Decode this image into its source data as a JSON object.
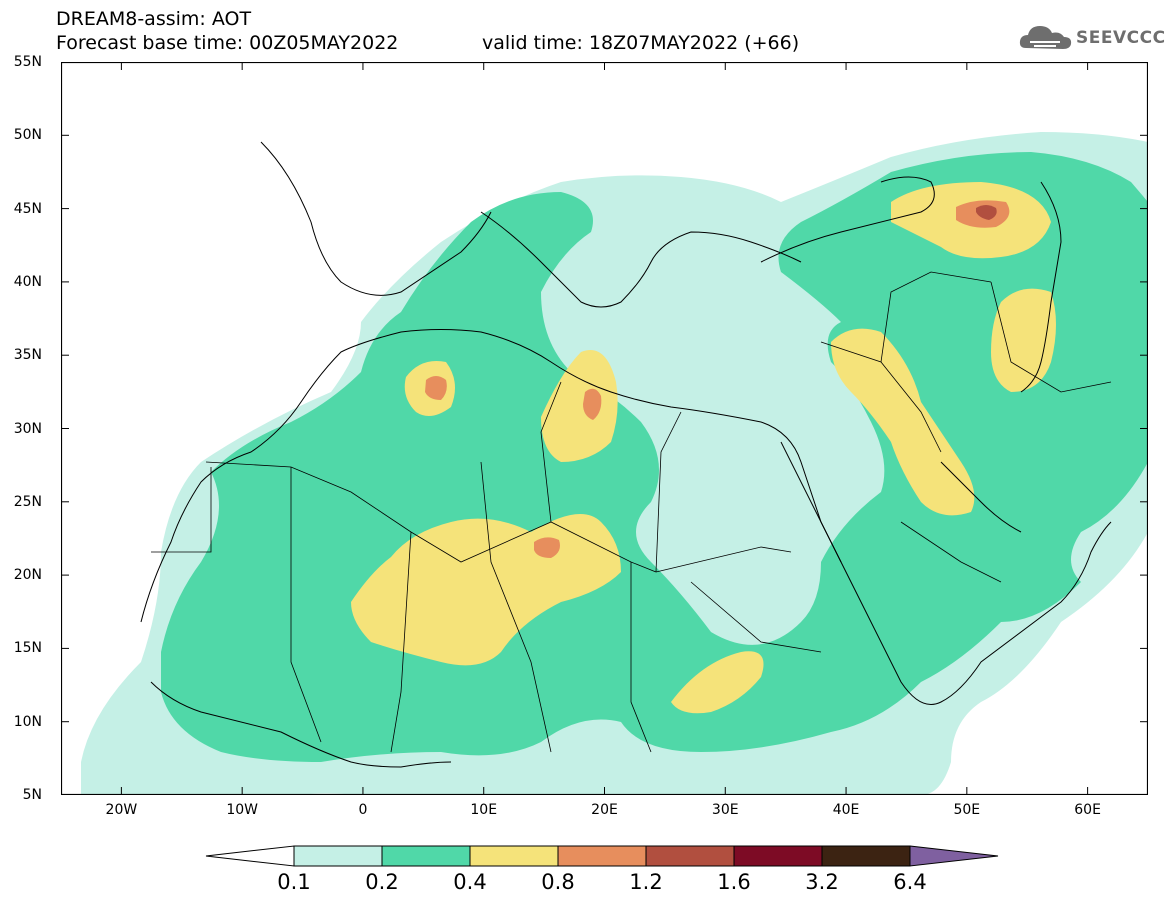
{
  "title": {
    "line1": "DREAM8-assim: AOT",
    "line2": "Forecast base time: 00Z05MAY2022",
    "valid": "valid time: 18Z07MAY2022 (+66)"
  },
  "brand": {
    "name": "SEEVCCC",
    "icon": "cloud-logo-icon"
  },
  "map": {
    "projection": "lat-lon",
    "lon_range": [
      -25,
      65
    ],
    "lat_range": [
      5,
      55
    ],
    "lat_ticks": [
      {
        "value": 55,
        "label": "55N"
      },
      {
        "value": 50,
        "label": "50N"
      },
      {
        "value": 45,
        "label": "45N"
      },
      {
        "value": 40,
        "label": "40N"
      },
      {
        "value": 35,
        "label": "35N"
      },
      {
        "value": 30,
        "label": "30N"
      },
      {
        "value": 25,
        "label": "25N"
      },
      {
        "value": 20,
        "label": "20N"
      },
      {
        "value": 15,
        "label": "15N"
      },
      {
        "value": 10,
        "label": "10N"
      },
      {
        "value": 5,
        "label": "5N"
      }
    ],
    "lon_ticks": [
      {
        "value": -20,
        "label": "20W"
      },
      {
        "value": -10,
        "label": "10W"
      },
      {
        "value": 0,
        "label": "0"
      },
      {
        "value": 10,
        "label": "10E"
      },
      {
        "value": 20,
        "label": "20E"
      },
      {
        "value": 30,
        "label": "30E"
      },
      {
        "value": 40,
        "label": "40E"
      },
      {
        "value": 50,
        "label": "50E"
      },
      {
        "value": 60,
        "label": "60E"
      }
    ]
  },
  "colorbar": {
    "levels": [
      "0.1",
      "0.2",
      "0.4",
      "0.8",
      "1.2",
      "1.6",
      "3.2",
      "6.4"
    ],
    "colors": [
      "#ffffff",
      "#c5f0e6",
      "#50d8a8",
      "#f5e37a",
      "#e78e5d",
      "#b14f3f",
      "#7d0b25",
      "#3c2312",
      "#7f60a0"
    ]
  }
}
